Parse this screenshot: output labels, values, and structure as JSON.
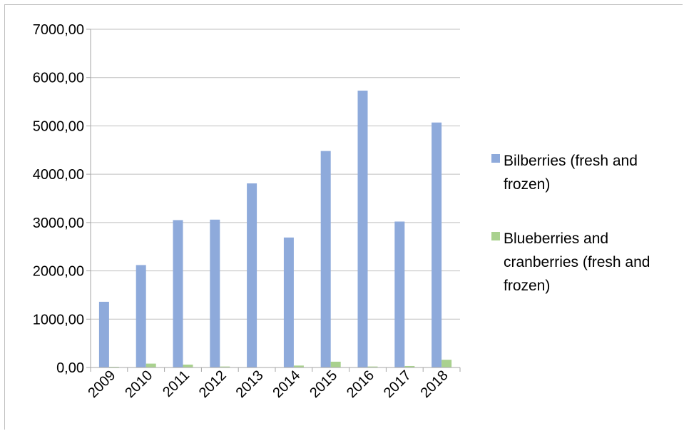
{
  "chart_data": {
    "type": "bar",
    "categories": [
      "2009",
      "2010",
      "2011",
      "2012",
      "2013",
      "2014",
      "2015",
      "2016",
      "2017",
      "2018"
    ],
    "series": [
      {
        "name": "Bilberries (fresh and frozen)",
        "name_lines": [
          "Bilberries (fresh and",
          "frozen)"
        ],
        "color": "#8eaadb",
        "values": [
          1360,
          2120,
          3050,
          3060,
          3810,
          2690,
          4480,
          5730,
          3020,
          5070
        ]
      },
      {
        "name": "Blueberries and cranberries (fresh and frozen)",
        "name_lines": [
          "Blueberries and",
          "cranberries (fresh and",
          "frozen)"
        ],
        "color": "#a9d18e",
        "values": [
          10,
          80,
          60,
          20,
          0,
          40,
          120,
          20,
          30,
          160
        ]
      }
    ],
    "ylim": [
      0,
      7000
    ],
    "yticks": [
      "0,00",
      "1000,00",
      "2000,00",
      "3000,00",
      "4000,00",
      "5000,00",
      "6000,00",
      "7000,00"
    ],
    "grid": true,
    "legend": "right",
    "title": "",
    "xlabel": "",
    "ylabel": ""
  }
}
